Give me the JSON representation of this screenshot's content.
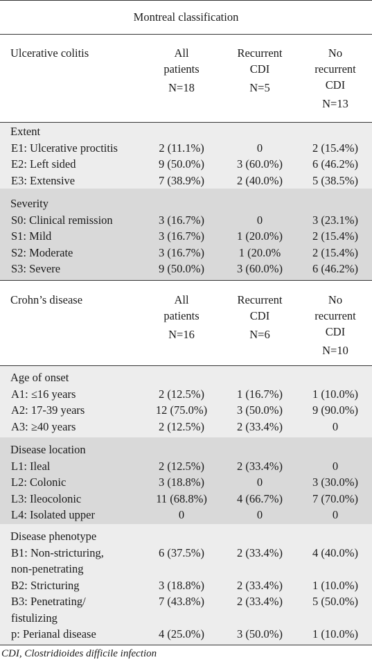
{
  "title": "Montreal classification",
  "uc": {
    "label": "Ulcerative colitis",
    "col_all": [
      "All",
      "patients",
      "N=18"
    ],
    "col_rec": [
      "Recurrent",
      "CDI",
      "N=5"
    ],
    "col_norec": [
      "No",
      "recurrent",
      "CDI",
      "N=13"
    ],
    "extent": {
      "header": "Extent",
      "rows": [
        [
          "E1: Ulcerative proctitis",
          "2 (11.1%)",
          "0",
          "2 (15.4%)"
        ],
        [
          "E2: Left sided",
          "9 (50.0%)",
          "3 (60.0%)",
          "6 (46.2%)"
        ],
        [
          "E3: Extensive",
          "7 (38.9%)",
          "2 (40.0%)",
          "5 (38.5%)"
        ]
      ]
    },
    "severity": {
      "header": "Severity",
      "rows": [
        [
          "S0: Clinical remission",
          "3 (16.7%)",
          "0",
          "3 (23.1%)"
        ],
        [
          "S1: Mild",
          "3 (16.7%)",
          "1 (20.0%)",
          "2 (15.4%)"
        ],
        [
          "S2: Moderate",
          "3 (16.7%)",
          "1 (20.0%",
          "2 (15.4%)"
        ],
        [
          "S3: Severe",
          "9 (50.0%)",
          "3 (60.0%)",
          "6 (46.2%)"
        ]
      ]
    }
  },
  "cd": {
    "label": "Crohn’s disease",
    "col_all": [
      "All",
      "patients",
      "N=16"
    ],
    "col_rec": [
      "Recurrent",
      "CDI",
      "N=6"
    ],
    "col_norec": [
      "No",
      "recurrent",
      "CDI",
      "N=10"
    ],
    "age": {
      "header": "Age of onset",
      "rows": [
        [
          "A1: ≤16 years",
          "2 (12.5%)",
          "1 (16.7%)",
          "1 (10.0%)"
        ],
        [
          "A2: 17-39 years",
          "12 (75.0%)",
          "3 (50.0%)",
          "9 (90.0%)"
        ],
        [
          "A3: ≥40 years",
          "2 (12.5%)",
          "2 (33.4%)",
          "0"
        ]
      ]
    },
    "location": {
      "header": "Disease location",
      "rows": [
        [
          "L1: Ileal",
          "2 (12.5%)",
          "2 (33.4%)",
          "0"
        ],
        [
          "L2: Colonic",
          "3 (18.8%)",
          "0",
          "3 (30.0%)"
        ],
        [
          "L3: Ileocolonic",
          "11 (68.8%)",
          "4 (66.7%)",
          "7 (70.0%)"
        ],
        [
          "L4: Isolated upper",
          "0",
          "0",
          "0"
        ]
      ]
    },
    "phenotype": {
      "header": "Disease phenotype",
      "rows": [
        [
          "B1: Non-stricturing,",
          "6 (37.5%)",
          "2 (33.4%)",
          "4 (40.0%)"
        ],
        [
          "non-penetrating",
          "",
          "",
          ""
        ],
        [
          "B2: Stricturing",
          "3 (18.8%)",
          "2 (33.4%)",
          "1 (10.0%)"
        ],
        [
          "B3: Penetrating/",
          "7 (43.8%)",
          "2 (33.4%)",
          "5 (50.0%)"
        ],
        [
          "fistulizing",
          "",
          "",
          ""
        ],
        [
          "p: Perianal disease",
          "4 (25.0%)",
          "3 (50.0%)",
          "1 (10.0%)"
        ]
      ]
    }
  },
  "footnote": "CDI, Clostridioides difficile infection"
}
